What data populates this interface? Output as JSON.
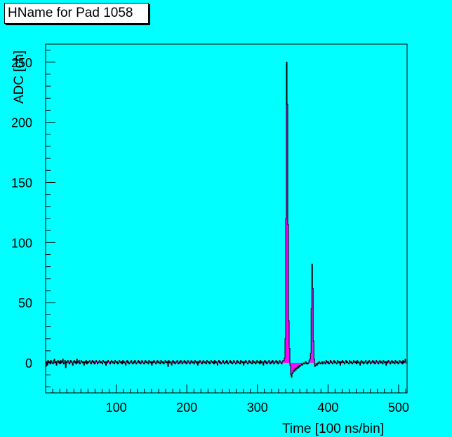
{
  "title": "HName for Pad 1058",
  "chart_data": {
    "type": "histogram",
    "xlabel": "Time [100 ns/bin]",
    "ylabel": "ADC [ch]",
    "xlim": [
      0,
      512
    ],
    "ylim": [
      -25,
      265
    ],
    "xticks": [
      100,
      200,
      300,
      400,
      500
    ],
    "yticks": [
      0,
      50,
      100,
      150,
      200,
      250
    ],
    "grid": false,
    "fill_color": "#ff00ff",
    "line_color": "#000000",
    "background": "#00ffff",
    "series": [
      {
        "bins_start": 0,
        "bin_width": 1,
        "values": [
          -3,
          1,
          -2,
          2,
          0,
          1,
          -1,
          2,
          1,
          0,
          -1,
          2,
          3,
          0,
          1,
          -2,
          1,
          2,
          0,
          1,
          -1,
          2,
          0,
          1,
          3,
          -1,
          0,
          2,
          -4,
          1,
          0,
          2,
          1,
          -1,
          0,
          2,
          1,
          0,
          -2,
          1,
          2,
          0,
          1,
          -1,
          3,
          0,
          1,
          2,
          -1,
          0,
          2,
          1,
          0,
          1,
          -2,
          1,
          0,
          2,
          -1,
          1,
          0,
          1,
          2,
          0,
          -1,
          1,
          2,
          0,
          1,
          -1,
          0,
          2,
          1,
          -1,
          0,
          1,
          2,
          0,
          1,
          0,
          -1,
          2,
          1,
          0,
          1,
          -2,
          1,
          0,
          2,
          1,
          0,
          -1,
          1,
          2,
          0,
          1,
          0,
          -1,
          2,
          1,
          0,
          1,
          -1,
          0,
          2,
          1,
          0,
          1,
          -1,
          2,
          0,
          1,
          0,
          -2,
          1,
          2,
          0,
          1,
          -1,
          0,
          1,
          2,
          0,
          -1,
          1,
          0,
          2,
          1,
          -1,
          0,
          1,
          2,
          0,
          1,
          -1,
          0,
          2,
          1,
          0,
          -1,
          1,
          2,
          0,
          1,
          0,
          -1,
          2,
          1,
          0,
          1,
          -2,
          1,
          0,
          2,
          1,
          0,
          -1,
          1,
          2,
          0,
          1,
          0,
          -1,
          2,
          1,
          0,
          1,
          -1,
          0,
          2,
          1,
          0,
          1,
          -3,
          2,
          0,
          1,
          0,
          -2,
          1,
          2,
          0,
          1,
          -1,
          0,
          1,
          2,
          0,
          -1,
          1,
          0,
          2,
          1,
          -1,
          0,
          1,
          2,
          0,
          1,
          -1,
          0,
          2,
          1,
          0,
          -1,
          1,
          2,
          0,
          1,
          0,
          -1,
          2,
          1,
          0,
          1,
          -2,
          1,
          0,
          2,
          1,
          0,
          -1,
          1,
          2,
          0,
          1,
          0,
          -1,
          2,
          1,
          0,
          1,
          -1,
          0,
          2,
          1,
          0,
          1,
          -1,
          2,
          0,
          1,
          0,
          -2,
          1,
          2,
          0,
          1,
          -1,
          0,
          1,
          2,
          0,
          -1,
          1,
          0,
          2,
          1,
          -1,
          0,
          1,
          2,
          0,
          1,
          -1,
          0,
          2,
          1,
          0,
          -1,
          1,
          2,
          0,
          1,
          0,
          -1,
          2,
          1,
          0,
          1,
          -2,
          1,
          0,
          2,
          1,
          0,
          -1,
          1,
          2,
          0,
          1,
          0,
          -1,
          2,
          1,
          0,
          1,
          -1,
          0,
          2,
          1,
          0,
          1,
          -1,
          2,
          0,
          1,
          0,
          -2,
          1,
          2,
          0,
          1,
          -1,
          0,
          1,
          2,
          0,
          -1,
          1,
          0,
          2,
          1,
          -1,
          0,
          1,
          2,
          0,
          1,
          -1,
          0,
          2,
          1,
          0,
          -1,
          1,
          2,
          2,
          4,
          20,
          120,
          250,
          215,
          115,
          35,
          12,
          -2,
          -10,
          -12,
          -9,
          -8,
          -6,
          -7,
          -5,
          -6,
          -4,
          -5,
          -3,
          -4,
          -2,
          -3,
          -2,
          -1,
          -2,
          -1,
          0,
          -1,
          0,
          1,
          -1,
          0,
          -1,
          0,
          2,
          3,
          8,
          45,
          82,
          62,
          18,
          3,
          -3,
          -2,
          -1,
          -2,
          0,
          -1,
          1,
          0,
          -1,
          0,
          1,
          -1,
          0,
          1,
          0,
          -1,
          2,
          1,
          0,
          1,
          -1,
          0,
          2,
          1,
          0,
          -1,
          1,
          2,
          0,
          1,
          0,
          -1,
          2,
          1,
          0,
          1,
          -2,
          1,
          0,
          2,
          1,
          0,
          -1,
          1,
          2,
          0,
          1,
          0,
          -1,
          2,
          1,
          0,
          1,
          -1,
          0,
          2,
          1,
          0,
          1,
          -1,
          2,
          0,
          1,
          0,
          -2,
          1,
          2,
          0,
          1,
          -1,
          0,
          1,
          2,
          0,
          -1,
          1,
          0,
          2,
          1,
          -1,
          0,
          1,
          2,
          0,
          1,
          -1,
          0,
          2,
          1,
          0,
          -1,
          1,
          2,
          0,
          1,
          0,
          -1,
          2,
          1,
          0,
          1,
          -2,
          1,
          0,
          2,
          1,
          0,
          -1,
          1,
          2,
          0,
          1,
          0,
          -1,
          2,
          1,
          0,
          1,
          -1,
          0,
          2,
          1,
          0,
          1,
          -1,
          2,
          0,
          1,
          3,
          0
        ]
      }
    ]
  }
}
